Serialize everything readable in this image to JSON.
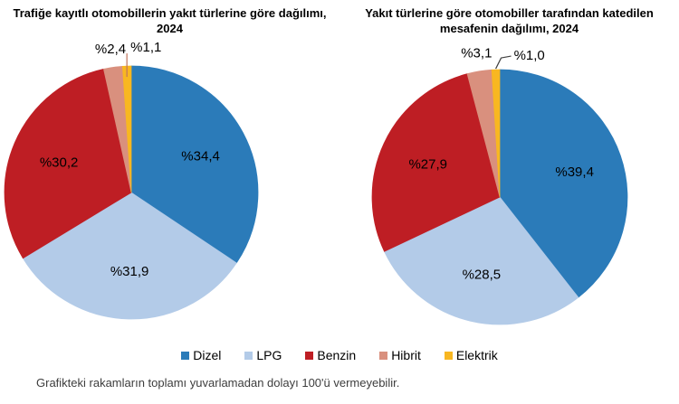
{
  "page": {
    "background": "#FFFFFF",
    "footnote": "Grafikteki rakamların toplamı yuvarlamadan dolayı 100'ü vermeyebilir."
  },
  "legend": {
    "position": "bottom-center-shared",
    "items": [
      {
        "label": "Dizel",
        "color": "#2B7BB9"
      },
      {
        "label": "LPG",
        "color": "#B3CBE8"
      },
      {
        "label": "Benzin",
        "color": "#BE1E24"
      },
      {
        "label": "Hibrit",
        "color": "#D9907E"
      },
      {
        "label": "Elektrik",
        "color": "#F8B721"
      }
    ]
  },
  "chart_data": [
    {
      "type": "pie",
      "title": "Trafiğe kayıtlı otomobillerin yakıt türlerine göre dağılımı, 2024",
      "categories": [
        "Dizel",
        "LPG",
        "Benzin",
        "Hibrit",
        "Elektrik"
      ],
      "values": [
        34.4,
        31.9,
        30.2,
        2.4,
        1.1
      ],
      "data_labels": [
        "%34,4",
        "%31,9",
        "%30,2",
        "%2,4",
        "%1,1"
      ],
      "colors": [
        "#2B7BB9",
        "#B3CBE8",
        "#BE1E24",
        "#D9907E",
        "#F8B721"
      ],
      "start_angle_deg": 0,
      "direction": "clockwise",
      "small_slice_threshold_pct": 5,
      "leader": {
        "style": "straight",
        "color": "#C0735C"
      }
    },
    {
      "type": "pie",
      "title": "Yakıt türlerine göre otomobiller tarafından katedilen mesafenin dağılımı, 2024",
      "categories": [
        "Dizel",
        "LPG",
        "Benzin",
        "Hibrit",
        "Elektrik"
      ],
      "values": [
        39.4,
        28.5,
        27.9,
        3.1,
        1.0
      ],
      "data_labels": [
        "%39,4",
        "%28,5",
        "%27,9",
        "%3,1",
        "%1,0"
      ],
      "colors": [
        "#2B7BB9",
        "#B3CBE8",
        "#BE1E24",
        "#D9907E",
        "#F8B721"
      ],
      "start_angle_deg": 0,
      "direction": "clockwise",
      "small_slice_threshold_pct": 5,
      "leader": {
        "style": "elbow",
        "color": "#404040"
      }
    }
  ]
}
